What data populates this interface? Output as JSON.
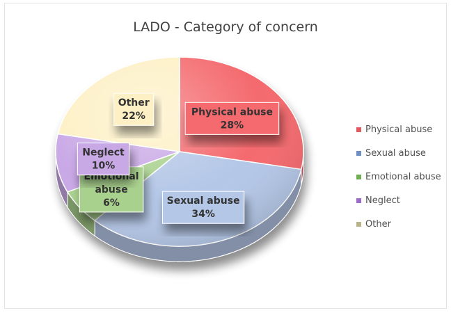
{
  "chart_data": {
    "type": "pie",
    "title": "LADO - Category of concern",
    "legend_position": "right",
    "slices": [
      {
        "name": "Physical abuse",
        "label_lines": [
          "Physical abuse",
          "28%"
        ],
        "value": 28,
        "color": "#f46a6e"
      },
      {
        "name": "Sexual abuse",
        "label_lines": [
          "Sexual abuse",
          "34%"
        ],
        "value": 34,
        "color": "#b4c7e7"
      },
      {
        "name": "Emotional abuse",
        "label_lines": [
          "Emotional",
          "abuse",
          "6%"
        ],
        "value": 6,
        "color": "#a9d18e"
      },
      {
        "name": "Neglect",
        "label_lines": [
          "Neglect",
          "10%"
        ],
        "value": 10,
        "color": "#c9a8e6"
      },
      {
        "name": "Other",
        "label_lines": [
          "Other",
          "22%"
        ],
        "value": 22,
        "color": "#fdf0c4"
      }
    ]
  }
}
